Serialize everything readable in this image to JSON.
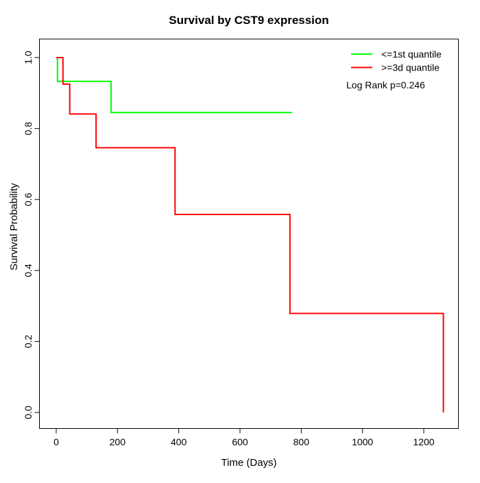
{
  "chart_data": {
    "type": "line",
    "subtype": "kaplan-meier-step-survival",
    "title": "Survival by CST9 expression",
    "xlabel": "Time (Days)",
    "ylabel": "Survival Probability",
    "xlim": [
      0,
      1300
    ],
    "ylim": [
      0.0,
      1.0
    ],
    "x_ticks": [
      "0",
      "200",
      "400",
      "600",
      "800",
      "1000",
      "1200"
    ],
    "y_ticks": [
      "0.0",
      "0.2",
      "0.4",
      "0.6",
      "0.8",
      "1.0"
    ],
    "grid": false,
    "legend_position": "top-right",
    "annotation": "Log Rank p=0.246",
    "log_rank_p": 0.246,
    "series": [
      {
        "name": "<=1st quantile",
        "color": "#00ff00",
        "points": [
          [
            0,
            1.0
          ],
          [
            4,
            1.0
          ],
          [
            4,
            0.933
          ],
          [
            179,
            0.933
          ],
          [
            179,
            0.845
          ],
          [
            770,
            0.845
          ]
        ]
      },
      {
        "name": ">=3d quantile",
        "color": "#ff0000",
        "points": [
          [
            0,
            1.0
          ],
          [
            22,
            1.0
          ],
          [
            22,
            0.925
          ],
          [
            44,
            0.925
          ],
          [
            44,
            0.841
          ],
          [
            130,
            0.841
          ],
          [
            130,
            0.746
          ],
          [
            388,
            0.746
          ],
          [
            388,
            0.558
          ],
          [
            763,
            0.558
          ],
          [
            763,
            0.279
          ],
          [
            1264,
            0.279
          ],
          [
            1264,
            0.0
          ]
        ]
      }
    ]
  }
}
